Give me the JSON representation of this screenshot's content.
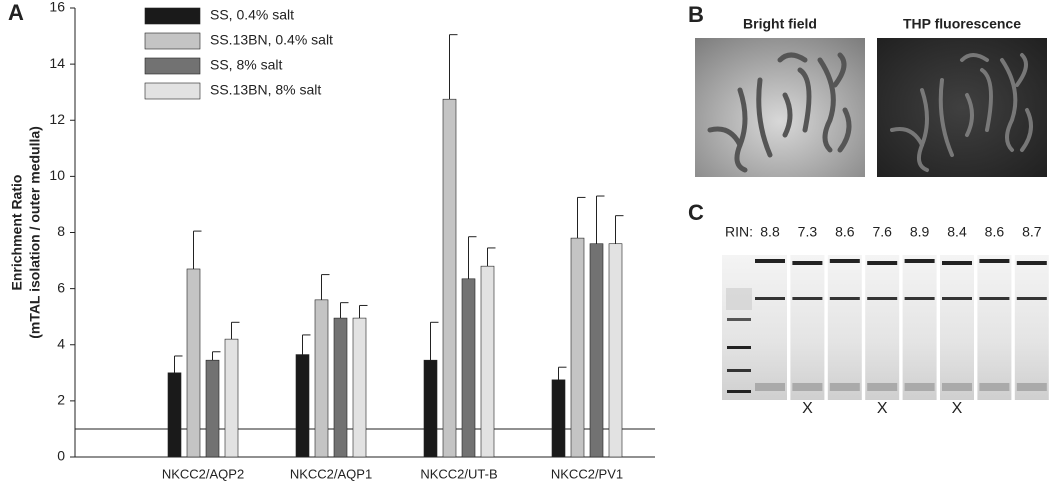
{
  "chart_data": {
    "type": "bar",
    "panel_label": "A",
    "y_label": [
      "Enrichment Ratio",
      "(mTAL isolation / outer medulla)"
    ],
    "categories": [
      "NKCC2/AQP2",
      "NKCC2/AQP1",
      "NKCC2/UT-B",
      "NKCC2/PV1"
    ],
    "series": [
      {
        "name": "SS, 0.4% salt",
        "color": "#1a1a1a",
        "values": [
          3.0,
          3.65,
          3.45,
          2.75
        ],
        "errors": [
          0.6,
          0.7,
          1.35,
          0.45
        ]
      },
      {
        "name": "SS.13BN, 0.4% salt",
        "color": "#c4c4c4",
        "values": [
          6.7,
          5.6,
          12.75,
          7.8
        ],
        "errors": [
          1.35,
          0.9,
          2.3,
          1.45
        ]
      },
      {
        "name": "SS, 8% salt",
        "color": "#727272",
        "values": [
          3.45,
          4.95,
          6.35,
          7.6
        ],
        "errors": [
          0.3,
          0.55,
          1.5,
          1.7
        ]
      },
      {
        "name": "SS.13BN, 8% salt",
        "color": "#e2e2e2",
        "values": [
          4.2,
          4.95,
          6.8,
          7.6
        ],
        "errors": [
          0.6,
          0.45,
          0.65,
          1.0
        ]
      }
    ],
    "reference_line": 1,
    "ylim": [
      0,
      16
    ],
    "yticks": [
      0,
      2,
      4,
      6,
      8,
      10,
      12,
      14,
      16
    ],
    "legend": "top-left"
  },
  "panel_b": {
    "panel_label": "B",
    "images": [
      {
        "title": "Bright field"
      },
      {
        "title": "THP fluorescence"
      }
    ]
  },
  "panel_c": {
    "panel_label": "C",
    "rin_label": "RIN:",
    "lanes": [
      {
        "rin": 8.8
      },
      {
        "rin": 7.3,
        "flag": "X"
      },
      {
        "rin": 8.6
      },
      {
        "rin": 7.6,
        "flag": "X"
      },
      {
        "rin": 8.9
      },
      {
        "rin": 8.4,
        "flag": "X"
      },
      {
        "rin": 8.6
      },
      {
        "rin": 8.7
      }
    ]
  }
}
